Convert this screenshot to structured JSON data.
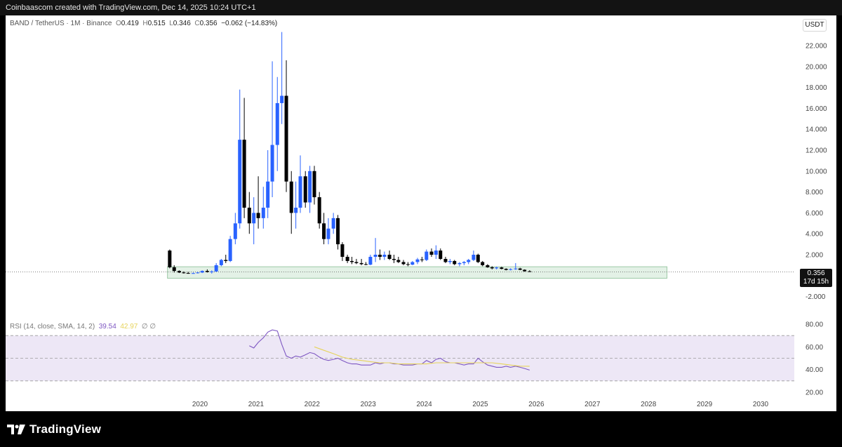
{
  "header": {
    "text": "Coinbaascom created with TradingView.com, Dec 14, 2025 10:24 UTC+1"
  },
  "legend": {
    "symbol": "BAND / TetherUS · 1M · Binance",
    "o_label": "O",
    "o": "0.419",
    "h_label": "H",
    "h": "0.515",
    "l_label": "L",
    "l": "0.346",
    "c_label": "C",
    "c": "0.356",
    "change": "−0.062 (−14.83%)"
  },
  "unit_label": "USDT",
  "price_tag": {
    "price": "0.356",
    "countdown": "17d 15h"
  },
  "rsi_legend": {
    "label": "RSI (14, close, SMA, 14, 2)",
    "rsi": "39.54",
    "sma": "42.97",
    "extra": "∅ ∅"
  },
  "footer": {
    "logo_text": "TradingView"
  },
  "colors": {
    "up": "#2962ff",
    "down": "#000000",
    "rsi": "#7e57c2",
    "rsi_sma": "#e6d35a",
    "rsi_band": "#ede7f6",
    "support_zone": "#e3f1e6"
  },
  "chart_data": [
    {
      "type": "candlestick",
      "title": "BAND / TetherUS · 1M · Binance",
      "ylim": [
        -3,
        23.5
      ],
      "y_ticks": [
        "22.000",
        "20.000",
        "18.000",
        "16.000",
        "14.000",
        "12.000",
        "10.000",
        "8.000",
        "6.000",
        "4.000",
        "2.000",
        "0.356",
        "-2.000"
      ],
      "x_ticks": [
        "2020",
        "2021",
        "2022",
        "2023",
        "2024",
        "2025",
        "2026",
        "2027",
        "2028",
        "2029",
        "2030"
      ],
      "support_zone": {
        "from": 0.0,
        "to": 0.6,
        "x_start": 2019.42,
        "x_end": 2028.33
      },
      "last_price": 0.356,
      "candles": [
        {
          "t": 2019.46,
          "o": 2.4,
          "h": 2.5,
          "l": 0.7,
          "c": 0.8
        },
        {
          "t": 2019.54,
          "o": 0.8,
          "h": 1.0,
          "l": 0.3,
          "c": 0.45
        },
        {
          "t": 2019.63,
          "o": 0.45,
          "h": 0.5,
          "l": 0.25,
          "c": 0.3
        },
        {
          "t": 2019.71,
          "o": 0.3,
          "h": 0.4,
          "l": 0.2,
          "c": 0.25
        },
        {
          "t": 2019.79,
          "o": 0.25,
          "h": 0.35,
          "l": 0.18,
          "c": 0.22
        },
        {
          "t": 2019.88,
          "o": 0.22,
          "h": 0.3,
          "l": 0.18,
          "c": 0.24
        },
        {
          "t": 2019.96,
          "o": 0.24,
          "h": 0.35,
          "l": 0.2,
          "c": 0.3
        },
        {
          "t": 2020.04,
          "o": 0.3,
          "h": 0.5,
          "l": 0.25,
          "c": 0.45
        },
        {
          "t": 2020.13,
          "o": 0.45,
          "h": 0.6,
          "l": 0.3,
          "c": 0.35
        },
        {
          "t": 2020.21,
          "o": 0.35,
          "h": 0.5,
          "l": 0.2,
          "c": 0.4
        },
        {
          "t": 2020.29,
          "o": 0.4,
          "h": 1.2,
          "l": 0.35,
          "c": 1.0
        },
        {
          "t": 2020.38,
          "o": 1.0,
          "h": 1.6,
          "l": 0.9,
          "c": 1.5
        },
        {
          "t": 2020.46,
          "o": 1.5,
          "h": 2.0,
          "l": 1.2,
          "c": 1.4
        },
        {
          "t": 2020.54,
          "o": 1.4,
          "h": 3.8,
          "l": 1.3,
          "c": 3.5
        },
        {
          "t": 2020.63,
          "o": 3.5,
          "h": 6.0,
          "l": 3.0,
          "c": 5.0
        },
        {
          "t": 2020.71,
          "o": 5.0,
          "h": 17.8,
          "l": 4.5,
          "c": 13.0
        },
        {
          "t": 2020.79,
          "o": 13.0,
          "h": 17.0,
          "l": 5.5,
          "c": 6.5
        },
        {
          "t": 2020.88,
          "o": 6.5,
          "h": 8.0,
          "l": 4.0,
          "c": 5.0
        },
        {
          "t": 2020.96,
          "o": 5.0,
          "h": 7.5,
          "l": 3.0,
          "c": 6.0
        },
        {
          "t": 2021.04,
          "o": 6.0,
          "h": 9.5,
          "l": 4.5,
          "c": 5.5
        },
        {
          "t": 2021.13,
          "o": 5.5,
          "h": 8.5,
          "l": 4.5,
          "c": 6.5
        },
        {
          "t": 2021.21,
          "o": 6.5,
          "h": 12.0,
          "l": 5.5,
          "c": 9.0
        },
        {
          "t": 2021.29,
          "o": 9.0,
          "h": 20.5,
          "l": 7.5,
          "c": 12.5
        },
        {
          "t": 2021.38,
          "o": 12.5,
          "h": 19.0,
          "l": 10.0,
          "c": 16.5
        },
        {
          "t": 2021.46,
          "o": 16.5,
          "h": 23.3,
          "l": 14.5,
          "c": 17.2
        },
        {
          "t": 2021.54,
          "o": 17.2,
          "h": 20.6,
          "l": 8.0,
          "c": 9.0
        },
        {
          "t": 2021.63,
          "o": 9.0,
          "h": 10.0,
          "l": 4.0,
          "c": 6.0
        },
        {
          "t": 2021.71,
          "o": 6.0,
          "h": 9.0,
          "l": 4.5,
          "c": 6.5
        },
        {
          "t": 2021.79,
          "o": 6.5,
          "h": 11.5,
          "l": 6.0,
          "c": 9.5
        },
        {
          "t": 2021.88,
          "o": 9.5,
          "h": 10.0,
          "l": 6.5,
          "c": 7.0
        },
        {
          "t": 2021.96,
          "o": 7.0,
          "h": 10.5,
          "l": 6.0,
          "c": 10.0
        },
        {
          "t": 2022.04,
          "o": 10.0,
          "h": 10.5,
          "l": 6.8,
          "c": 7.5
        },
        {
          "t": 2022.13,
          "o": 7.5,
          "h": 8.0,
          "l": 4.5,
          "c": 5.0
        },
        {
          "t": 2022.21,
          "o": 5.0,
          "h": 6.0,
          "l": 3.0,
          "c": 3.5
        },
        {
          "t": 2022.29,
          "o": 3.5,
          "h": 5.5,
          "l": 3.0,
          "c": 4.5
        },
        {
          "t": 2022.38,
          "o": 4.5,
          "h": 6.0,
          "l": 4.0,
          "c": 5.5
        },
        {
          "t": 2022.46,
          "o": 5.5,
          "h": 5.8,
          "l": 2.5,
          "c": 3.0
        },
        {
          "t": 2022.54,
          "o": 3.0,
          "h": 3.2,
          "l": 1.4,
          "c": 1.8
        },
        {
          "t": 2022.63,
          "o": 1.8,
          "h": 2.0,
          "l": 1.2,
          "c": 1.4
        },
        {
          "t": 2022.71,
          "o": 1.4,
          "h": 1.8,
          "l": 1.1,
          "c": 1.3
        },
        {
          "t": 2022.79,
          "o": 1.3,
          "h": 1.6,
          "l": 1.1,
          "c": 1.2
        },
        {
          "t": 2022.88,
          "o": 1.2,
          "h": 1.6,
          "l": 1.0,
          "c": 1.1
        },
        {
          "t": 2022.96,
          "o": 1.1,
          "h": 1.3,
          "l": 1.0,
          "c": 1.05
        },
        {
          "t": 2023.04,
          "o": 1.05,
          "h": 2.0,
          "l": 1.0,
          "c": 1.8
        },
        {
          "t": 2023.13,
          "o": 1.8,
          "h": 3.6,
          "l": 1.3,
          "c": 2.0
        },
        {
          "t": 2023.21,
          "o": 2.0,
          "h": 2.5,
          "l": 1.5,
          "c": 1.8
        },
        {
          "t": 2023.29,
          "o": 1.8,
          "h": 2.3,
          "l": 1.5,
          "c": 2.0
        },
        {
          "t": 2023.38,
          "o": 2.0,
          "h": 2.4,
          "l": 1.5,
          "c": 1.6
        },
        {
          "t": 2023.46,
          "o": 1.6,
          "h": 2.0,
          "l": 1.2,
          "c": 1.5
        },
        {
          "t": 2023.54,
          "o": 1.5,
          "h": 1.8,
          "l": 1.2,
          "c": 1.3
        },
        {
          "t": 2023.63,
          "o": 1.3,
          "h": 1.5,
          "l": 1.0,
          "c": 1.1
        },
        {
          "t": 2023.71,
          "o": 1.1,
          "h": 1.3,
          "l": 0.9,
          "c": 1.05
        },
        {
          "t": 2023.79,
          "o": 1.05,
          "h": 1.4,
          "l": 1.0,
          "c": 1.3
        },
        {
          "t": 2023.88,
          "o": 1.3,
          "h": 1.7,
          "l": 1.1,
          "c": 1.55
        },
        {
          "t": 2023.96,
          "o": 1.55,
          "h": 1.8,
          "l": 1.3,
          "c": 1.5
        },
        {
          "t": 2024.04,
          "o": 1.5,
          "h": 2.5,
          "l": 1.4,
          "c": 2.3
        },
        {
          "t": 2024.13,
          "o": 2.3,
          "h": 2.6,
          "l": 1.8,
          "c": 2.0
        },
        {
          "t": 2024.21,
          "o": 2.0,
          "h": 2.9,
          "l": 1.6,
          "c": 2.4
        },
        {
          "t": 2024.29,
          "o": 2.4,
          "h": 2.6,
          "l": 1.5,
          "c": 1.6
        },
        {
          "t": 2024.38,
          "o": 1.6,
          "h": 1.8,
          "l": 1.2,
          "c": 1.3
        },
        {
          "t": 2024.46,
          "o": 1.3,
          "h": 1.6,
          "l": 1.1,
          "c": 1.4
        },
        {
          "t": 2024.54,
          "o": 1.4,
          "h": 1.5,
          "l": 1.0,
          "c": 1.1
        },
        {
          "t": 2024.63,
          "o": 1.1,
          "h": 1.3,
          "l": 0.9,
          "c": 1.2
        },
        {
          "t": 2024.71,
          "o": 1.2,
          "h": 1.4,
          "l": 1.0,
          "c": 1.3
        },
        {
          "t": 2024.79,
          "o": 1.3,
          "h": 1.6,
          "l": 1.1,
          "c": 1.5
        },
        {
          "t": 2024.88,
          "o": 1.5,
          "h": 2.4,
          "l": 1.4,
          "c": 2.0
        },
        {
          "t": 2024.96,
          "o": 2.0,
          "h": 2.1,
          "l": 1.2,
          "c": 1.3
        },
        {
          "t": 2025.04,
          "o": 1.3,
          "h": 1.4,
          "l": 0.9,
          "c": 1.0
        },
        {
          "t": 2025.13,
          "o": 1.0,
          "h": 1.1,
          "l": 0.75,
          "c": 0.8
        },
        {
          "t": 2025.21,
          "o": 0.8,
          "h": 0.9,
          "l": 0.6,
          "c": 0.7
        },
        {
          "t": 2025.29,
          "o": 0.7,
          "h": 0.85,
          "l": 0.6,
          "c": 0.78
        },
        {
          "t": 2025.38,
          "o": 0.78,
          "h": 0.85,
          "l": 0.6,
          "c": 0.65
        },
        {
          "t": 2025.46,
          "o": 0.65,
          "h": 0.7,
          "l": 0.5,
          "c": 0.55
        },
        {
          "t": 2025.54,
          "o": 0.55,
          "h": 0.7,
          "l": 0.5,
          "c": 0.62
        },
        {
          "t": 2025.63,
          "o": 0.62,
          "h": 1.2,
          "l": 0.55,
          "c": 0.68
        },
        {
          "t": 2025.71,
          "o": 0.68,
          "h": 0.75,
          "l": 0.52,
          "c": 0.56
        },
        {
          "t": 2025.79,
          "o": 0.56,
          "h": 0.6,
          "l": 0.38,
          "c": 0.42
        },
        {
          "t": 2025.88,
          "o": 0.419,
          "h": 0.515,
          "l": 0.346,
          "c": 0.356
        }
      ]
    },
    {
      "type": "line",
      "title": "RSI (14, close, SMA, 14, 2)",
      "ylim": [
        20,
        80
      ],
      "y_ticks": [
        "80.00",
        "60.00",
        "40.00",
        "20.00"
      ],
      "bands": [
        70,
        50,
        30
      ],
      "series": [
        {
          "name": "RSI",
          "x": [
            2020.88,
            2020.96,
            2021.04,
            2021.13,
            2021.21,
            2021.29,
            2021.38,
            2021.46,
            2021.54,
            2021.63,
            2021.71,
            2021.79,
            2021.88,
            2021.96,
            2022.04,
            2022.13,
            2022.21,
            2022.29,
            2022.38,
            2022.46,
            2022.54,
            2022.63,
            2022.71,
            2022.79,
            2022.88,
            2022.96,
            2023.04,
            2023.13,
            2023.21,
            2023.29,
            2023.38,
            2023.46,
            2023.54,
            2023.63,
            2023.71,
            2023.79,
            2023.88,
            2023.96,
            2024.04,
            2024.13,
            2024.21,
            2024.29,
            2024.38,
            2024.46,
            2024.54,
            2024.63,
            2024.71,
            2024.79,
            2024.88,
            2024.96,
            2025.04,
            2025.13,
            2025.21,
            2025.29,
            2025.38,
            2025.46,
            2025.54,
            2025.63,
            2025.71,
            2025.79,
            2025.88
          ],
          "values": [
            61,
            59,
            64,
            68,
            73,
            75,
            74,
            62,
            52,
            50,
            52,
            51,
            53,
            55,
            54,
            51,
            49,
            48,
            49,
            50,
            48,
            46,
            45,
            45,
            44,
            44,
            44,
            46,
            45,
            46,
            46,
            45,
            45,
            44,
            44,
            44,
            45,
            45,
            48,
            46,
            49,
            50,
            47,
            46,
            46,
            45,
            44,
            45,
            45,
            50,
            47,
            44,
            43,
            42,
            42,
            43,
            42,
            43,
            42,
            41,
            39.54
          ]
        },
        {
          "name": "SMA",
          "x": [
            2022.04,
            2022.21,
            2022.38,
            2022.54,
            2022.71,
            2022.88,
            2023.04,
            2023.21,
            2023.38,
            2023.54,
            2023.71,
            2023.88,
            2024.04,
            2024.21,
            2024.38,
            2024.54,
            2024.71,
            2024.88,
            2025.04,
            2025.21,
            2025.38,
            2025.54,
            2025.71,
            2025.88
          ],
          "values": [
            60,
            57,
            54,
            51,
            49,
            48,
            47,
            46,
            46,
            45,
            45,
            45,
            45,
            46,
            46,
            46,
            46,
            46,
            46,
            46,
            45,
            44,
            43,
            42.97
          ]
        }
      ]
    }
  ]
}
